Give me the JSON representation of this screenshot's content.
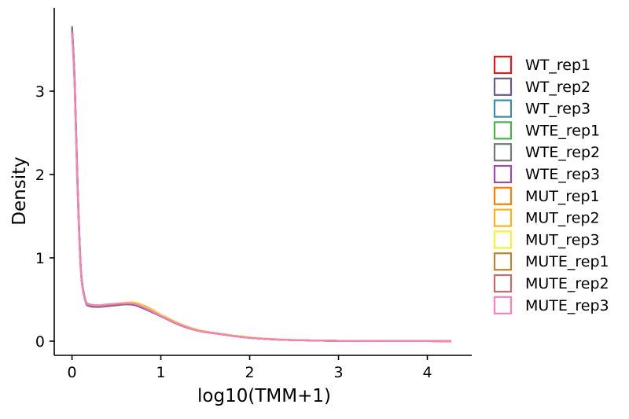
{
  "chart_data": {
    "type": "line",
    "xlabel": "log10(TMM+1)",
    "ylabel": "Density",
    "xlim": [
      -0.2,
      4.5
    ],
    "ylim": [
      -0.17,
      4.0
    ],
    "xticks": [
      0,
      1,
      2,
      3,
      4
    ],
    "yticks": [
      0,
      1,
      2,
      3
    ],
    "xtick_labels": [
      "0",
      "1",
      "2",
      "3",
      "4"
    ],
    "ytick_labels": [
      "0",
      "1",
      "2",
      "3"
    ],
    "grid": false,
    "legend_position": "right",
    "x": [
      0,
      0.03,
      0.06,
      0.1,
      0.15,
      0.2,
      0.3,
      0.4,
      0.5,
      0.6,
      0.7,
      0.8,
      0.9,
      1.0,
      1.2,
      1.4,
      1.6,
      1.8,
      2.0,
      2.2,
      2.5,
      3.0,
      3.5,
      4.0,
      4.27
    ],
    "series": [
      {
        "name": "WT_rep1",
        "color": "#e41a1c",
        "values": [
          3.76,
          3.1,
          1.95,
          0.85,
          0.5,
          0.44,
          0.425,
          0.43,
          0.44,
          0.445,
          0.44,
          0.4,
          0.35,
          0.3,
          0.2,
          0.13,
          0.095,
          0.065,
          0.04,
          0.025,
          0.012,
          0.004,
          0.002,
          0.001,
          0.0
        ]
      },
      {
        "name": "WT_rep2",
        "color": "#6a5a8c",
        "values": [
          3.76,
          3.12,
          1.97,
          0.86,
          0.5,
          0.44,
          0.42,
          0.425,
          0.435,
          0.44,
          0.435,
          0.395,
          0.35,
          0.3,
          0.2,
          0.13,
          0.095,
          0.065,
          0.04,
          0.025,
          0.012,
          0.004,
          0.002,
          0.001,
          0.0
        ]
      },
      {
        "name": "WT_rep3",
        "color": "#3a8ca8",
        "values": [
          3.78,
          3.15,
          2.0,
          0.88,
          0.5,
          0.44,
          0.42,
          0.425,
          0.435,
          0.44,
          0.435,
          0.395,
          0.35,
          0.3,
          0.2,
          0.13,
          0.095,
          0.065,
          0.04,
          0.025,
          0.012,
          0.004,
          0.002,
          0.001,
          0.0
        ]
      },
      {
        "name": "WTE_rep1",
        "color": "#4daf4a",
        "values": [
          3.74,
          3.08,
          1.94,
          0.85,
          0.49,
          0.43,
          0.42,
          0.43,
          0.44,
          0.45,
          0.445,
          0.405,
          0.355,
          0.305,
          0.205,
          0.13,
          0.095,
          0.065,
          0.04,
          0.025,
          0.012,
          0.004,
          0.002,
          0.001,
          0.0
        ]
      },
      {
        "name": "WTE_rep2",
        "color": "#777777",
        "values": [
          3.75,
          3.1,
          1.95,
          0.84,
          0.48,
          0.42,
          0.41,
          0.42,
          0.43,
          0.44,
          0.435,
          0.395,
          0.35,
          0.3,
          0.2,
          0.13,
          0.095,
          0.065,
          0.04,
          0.025,
          0.012,
          0.004,
          0.002,
          0.001,
          0.0
        ]
      },
      {
        "name": "WTE_rep3",
        "color": "#984ea3",
        "values": [
          3.74,
          3.09,
          1.94,
          0.85,
          0.49,
          0.43,
          0.42,
          0.43,
          0.44,
          0.445,
          0.44,
          0.4,
          0.35,
          0.3,
          0.2,
          0.13,
          0.095,
          0.065,
          0.04,
          0.025,
          0.012,
          0.004,
          0.002,
          0.001,
          0.0
        ]
      },
      {
        "name": "MUT_rep1",
        "color": "#ff7f00",
        "values": [
          3.72,
          3.05,
          1.9,
          0.84,
          0.49,
          0.44,
          0.43,
          0.44,
          0.45,
          0.455,
          0.455,
          0.415,
          0.365,
          0.31,
          0.21,
          0.135,
          0.1,
          0.07,
          0.045,
          0.028,
          0.013,
          0.004,
          0.002,
          0.001,
          0.0
        ]
      },
      {
        "name": "MUT_rep2",
        "color": "#fdb316",
        "values": [
          3.72,
          3.06,
          1.91,
          0.84,
          0.49,
          0.44,
          0.43,
          0.44,
          0.45,
          0.46,
          0.465,
          0.43,
          0.38,
          0.32,
          0.215,
          0.14,
          0.1,
          0.07,
          0.045,
          0.028,
          0.013,
          0.004,
          0.002,
          0.001,
          0.0
        ]
      },
      {
        "name": "MUT_rep3",
        "color": "#f2f23a",
        "values": [
          3.72,
          3.05,
          1.9,
          0.84,
          0.49,
          0.44,
          0.43,
          0.44,
          0.45,
          0.455,
          0.46,
          0.42,
          0.37,
          0.315,
          0.21,
          0.135,
          0.1,
          0.07,
          0.045,
          0.028,
          0.013,
          0.004,
          0.002,
          0.001,
          0.0
        ]
      },
      {
        "name": "MUTE_rep1",
        "color": "#b8862b",
        "values": [
          3.73,
          3.07,
          1.92,
          0.84,
          0.49,
          0.44,
          0.425,
          0.435,
          0.445,
          0.45,
          0.45,
          0.41,
          0.36,
          0.305,
          0.205,
          0.13,
          0.095,
          0.065,
          0.04,
          0.025,
          0.012,
          0.004,
          0.002,
          0.001,
          0.0
        ]
      },
      {
        "name": "MUTE_rep2",
        "color": "#c76a6a",
        "values": [
          3.73,
          3.07,
          1.92,
          0.84,
          0.49,
          0.44,
          0.425,
          0.435,
          0.445,
          0.45,
          0.45,
          0.41,
          0.36,
          0.305,
          0.205,
          0.13,
          0.095,
          0.065,
          0.04,
          0.025,
          0.012,
          0.004,
          0.002,
          0.001,
          0.0
        ]
      },
      {
        "name": "MUTE_rep3",
        "color": "#f781bf",
        "values": [
          3.7,
          3.04,
          1.9,
          0.84,
          0.49,
          0.44,
          0.43,
          0.44,
          0.45,
          0.455,
          0.45,
          0.41,
          0.36,
          0.305,
          0.205,
          0.13,
          0.095,
          0.065,
          0.04,
          0.025,
          0.012,
          0.004,
          0.002,
          0.001,
          0.0
        ]
      }
    ]
  }
}
